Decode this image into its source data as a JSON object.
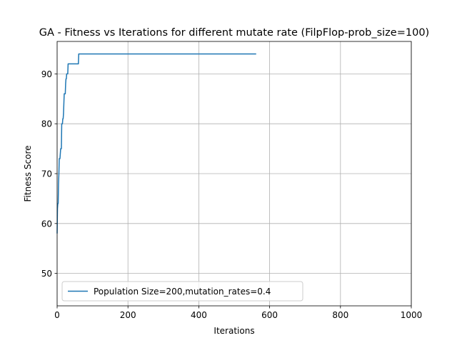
{
  "chart_data": {
    "type": "line",
    "title": "GA - Fitness vs Iterations for different mutate rate (FilpFlop-prob_size=100)",
    "xlabel": "Iterations",
    "ylabel": "Fitness Score",
    "xlim": [
      0,
      1000
    ],
    "ylim": [
      43.5,
      96.5
    ],
    "xticks": [
      0,
      200,
      400,
      600,
      800,
      1000
    ],
    "yticks": [
      50,
      60,
      70,
      80,
      90
    ],
    "grid": true,
    "legend_position": "lower-left",
    "series": [
      {
        "name": "Population Size=200,mutation_rates=0.4",
        "color": "#1f77b4",
        "x": [
          0,
          1,
          2,
          3,
          4,
          5,
          6,
          7,
          8,
          9,
          10,
          11,
          12,
          13,
          14,
          15,
          16,
          17,
          18,
          19,
          20,
          21,
          22,
          23,
          24,
          25,
          26,
          27,
          28,
          29,
          30,
          31,
          32,
          33,
          34,
          35,
          36,
          37,
          38,
          39,
          40,
          41,
          42,
          43,
          44,
          45,
          46,
          47,
          48,
          49,
          50,
          51,
          52,
          53,
          54,
          55,
          56,
          57,
          58,
          59,
          60,
          61,
          62,
          63,
          64,
          65,
          562
        ],
        "y": [
          58,
          63,
          64,
          64,
          68,
          70,
          73,
          73,
          73,
          74,
          75,
          75,
          75,
          80,
          80,
          80,
          81,
          81,
          82,
          84,
          86,
          86,
          86,
          86,
          88,
          89,
          89,
          90,
          90,
          90,
          90,
          92,
          92,
          92,
          92,
          92,
          92,
          92,
          92,
          92,
          92,
          92,
          92,
          92,
          92,
          92,
          92,
          92,
          92,
          92,
          92,
          92,
          92,
          92,
          92,
          92,
          92,
          92,
          92,
          92,
          92,
          94,
          94,
          94,
          94,
          94,
          94
        ]
      }
    ]
  }
}
